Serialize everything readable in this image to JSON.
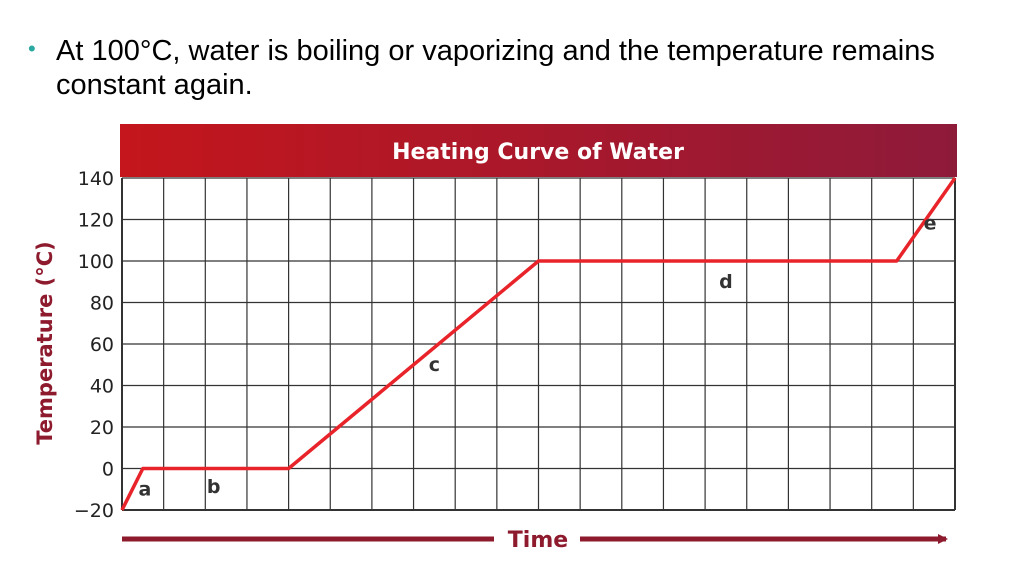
{
  "slide": {
    "bullet": "At 100°C, water is boiling or vaporizing and the temperature remains constant again."
  },
  "colors": {
    "bullet": "#2aa9a0",
    "banner_start": "#c4161c",
    "banner_end": "#8e1a3a",
    "axis_title": "#8e1a2e",
    "curve": "#e8232a",
    "grid": "#333333"
  },
  "chart_data": {
    "type": "line",
    "title": "Heating Curve of Water",
    "xlabel": "Time",
    "ylabel": "Temperature (°C)",
    "ylim": [
      -20,
      140
    ],
    "xlim": [
      0,
      20
    ],
    "yticks": [
      -20,
      0,
      20,
      40,
      60,
      80,
      100,
      120,
      140
    ],
    "grid": true,
    "series": [
      {
        "x": [
          0,
          0.5,
          4,
          10,
          18.6,
          20
        ],
        "y": [
          -20,
          0,
          0,
          100,
          100,
          140
        ]
      }
    ],
    "annotations": [
      {
        "text": "a",
        "x": 0.55,
        "y": -10
      },
      {
        "text": "b",
        "x": 2.2,
        "y": -9
      },
      {
        "text": "c",
        "x": 7.5,
        "y": 50
      },
      {
        "text": "d",
        "x": 14.5,
        "y": 90
      },
      {
        "text": "e",
        "x": 19.4,
        "y": 118
      }
    ]
  }
}
